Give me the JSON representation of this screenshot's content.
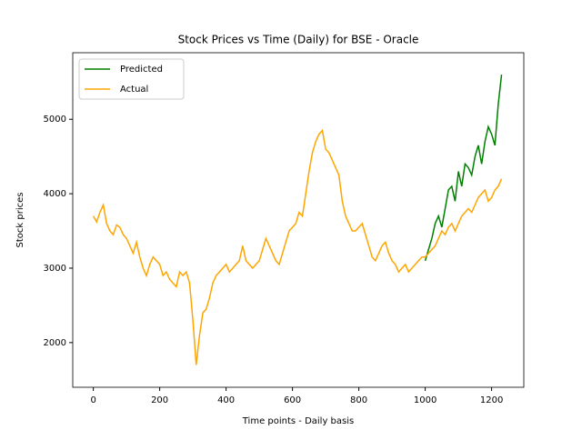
{
  "chart_data": {
    "type": "line",
    "title": "Stock Prices vs Time (Daily) for BSE - Oracle",
    "x_label": "Time points - Daily basis",
    "y_label": "Stock prices",
    "x": [
      0,
      10,
      20,
      30,
      40,
      50,
      60,
      70,
      80,
      90,
      100,
      110,
      120,
      130,
      140,
      150,
      160,
      170,
      180,
      190,
      200,
      210,
      220,
      230,
      240,
      250,
      260,
      270,
      280,
      290,
      300,
      310,
      320,
      330,
      340,
      350,
      360,
      370,
      380,
      390,
      400,
      410,
      420,
      430,
      440,
      450,
      460,
      470,
      480,
      490,
      500,
      510,
      520,
      530,
      540,
      550,
      560,
      570,
      580,
      590,
      600,
      610,
      620,
      630,
      640,
      650,
      660,
      670,
      680,
      690,
      700,
      710,
      720,
      730,
      740,
      750,
      760,
      770,
      780,
      790,
      800,
      810,
      820,
      830,
      840,
      850,
      860,
      870,
      880,
      890,
      900,
      910,
      920,
      930,
      940,
      950,
      960,
      970,
      980,
      990,
      1000,
      1010,
      1020,
      1030,
      1040,
      1050,
      1060,
      1070,
      1080,
      1090,
      1100,
      1110,
      1120,
      1130,
      1140,
      1150,
      1160,
      1170,
      1180,
      1190,
      1200,
      1210,
      1220,
      1230
    ],
    "series": [
      {
        "name": "Predicted",
        "color": "green",
        "values": [
          null,
          null,
          null,
          null,
          null,
          null,
          null,
          null,
          null,
          null,
          null,
          null,
          null,
          null,
          null,
          null,
          null,
          null,
          null,
          null,
          null,
          null,
          null,
          null,
          null,
          null,
          null,
          null,
          null,
          null,
          null,
          null,
          null,
          null,
          null,
          null,
          null,
          null,
          null,
          null,
          null,
          null,
          null,
          null,
          null,
          null,
          null,
          null,
          null,
          null,
          null,
          null,
          null,
          null,
          null,
          null,
          null,
          null,
          null,
          null,
          null,
          null,
          null,
          null,
          null,
          null,
          null,
          null,
          null,
          null,
          null,
          null,
          null,
          null,
          null,
          null,
          null,
          null,
          null,
          null,
          null,
          null,
          null,
          null,
          null,
          null,
          null,
          null,
          null,
          null,
          null,
          null,
          null,
          null,
          null,
          null,
          null,
          null,
          null,
          null,
          3100,
          3250,
          3400,
          3600,
          3700,
          3550,
          3800,
          4050,
          4100,
          3900,
          4300,
          4100,
          4400,
          4350,
          4250,
          4500,
          4650,
          4400,
          4700,
          4900,
          4800,
          4650,
          5200,
          5600
        ]
      },
      {
        "name": "Actual",
        "color": "orange",
        "values": [
          3700,
          3620,
          3750,
          3850,
          3600,
          3500,
          3450,
          3580,
          3550,
          3450,
          3400,
          3300,
          3200,
          3350,
          3150,
          3000,
          2900,
          3050,
          3150,
          3100,
          3050,
          2900,
          2950,
          2850,
          2800,
          2750,
          2950,
          2900,
          2950,
          2800,
          2300,
          1700,
          2100,
          2400,
          2450,
          2600,
          2800,
          2900,
          2950,
          3000,
          3050,
          2950,
          3000,
          3050,
          3100,
          3300,
          3100,
          3050,
          3000,
          3050,
          3100,
          3250,
          3400,
          3300,
          3200,
          3100,
          3050,
          3200,
          3350,
          3500,
          3550,
          3600,
          3750,
          3700,
          4000,
          4300,
          4550,
          4700,
          4800,
          4850,
          4600,
          4550,
          4450,
          4350,
          4250,
          3900,
          3700,
          3600,
          3500,
          3500,
          3550,
          3600,
          3450,
          3300,
          3150,
          3100,
          3200,
          3300,
          3350,
          3200,
          3100,
          3050,
          2950,
          3000,
          3050,
          2950,
          3000,
          3050,
          3100,
          3150,
          3150,
          3200,
          3250,
          3300,
          3400,
          3500,
          3450,
          3550,
          3600,
          3500,
          3600,
          3700,
          3750,
          3800,
          3750,
          3850,
          3950,
          4000,
          4050,
          3900,
          3950,
          4050,
          4100,
          4200
        ]
      }
    ],
    "xlim": [
      -62,
      1297
    ],
    "ylim": [
      1400,
      5894
    ],
    "xticks": [
      0,
      200,
      400,
      600,
      800,
      1000,
      1200
    ],
    "yticks": [
      2000,
      3000,
      4000,
      5000
    ],
    "legend": "upper left"
  }
}
